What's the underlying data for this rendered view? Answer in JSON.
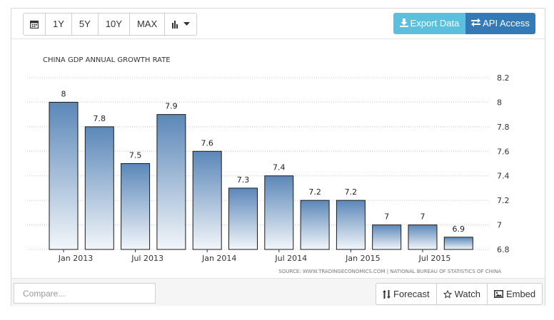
{
  "toolbar": {
    "range_buttons": [
      "1Y",
      "5Y",
      "10Y",
      "MAX"
    ],
    "calendar_icon": "calendar-icon",
    "chart_type_icon": "bar-chart-icon",
    "export_label": "Export Data",
    "api_label": "API Access",
    "export_color": "#5bc0de",
    "api_color": "#337ab7"
  },
  "footer": {
    "compare_placeholder": "Compare...",
    "forecast_label": "Forecast",
    "watch_label": "Watch",
    "embed_label": "Embed"
  },
  "chart_data": {
    "type": "bar",
    "title": "CHINA GDP ANNUAL GROWTH RATE",
    "source": "SOURCE: WWW.TRADINGECONOMICS.COM | NATIONAL BUREAU OF STATISTICS OF CHINA",
    "values": [
      8,
      7.8,
      7.5,
      7.9,
      7.6,
      7.3,
      7.4,
      7.2,
      7.2,
      7,
      7,
      6.9
    ],
    "value_labels": [
      "8",
      "7.8",
      "7.5",
      "7.9",
      "7.6",
      "7.3",
      "7.4",
      "7.2",
      "7.2",
      "7",
      "7",
      "6.9"
    ],
    "x_tick_labels": [
      "Jan 2013",
      "Jul 2013",
      "Jan 2014",
      "Jul 2014",
      "Jan 2015",
      "Jul 2015"
    ],
    "y_ticks": [
      6.8,
      7,
      7.2,
      7.4,
      7.6,
      7.8,
      8,
      8.2
    ],
    "y_tick_labels": [
      "6.8",
      "7",
      "7.2",
      "7.4",
      "7.6",
      "7.8",
      "8",
      "8.2"
    ],
    "ylim": [
      6.8,
      8.2
    ],
    "y_axis_side": "right",
    "grid": true,
    "bar_color_top": "#5b87b8",
    "bar_color_bottom": "#f2f6fa"
  }
}
